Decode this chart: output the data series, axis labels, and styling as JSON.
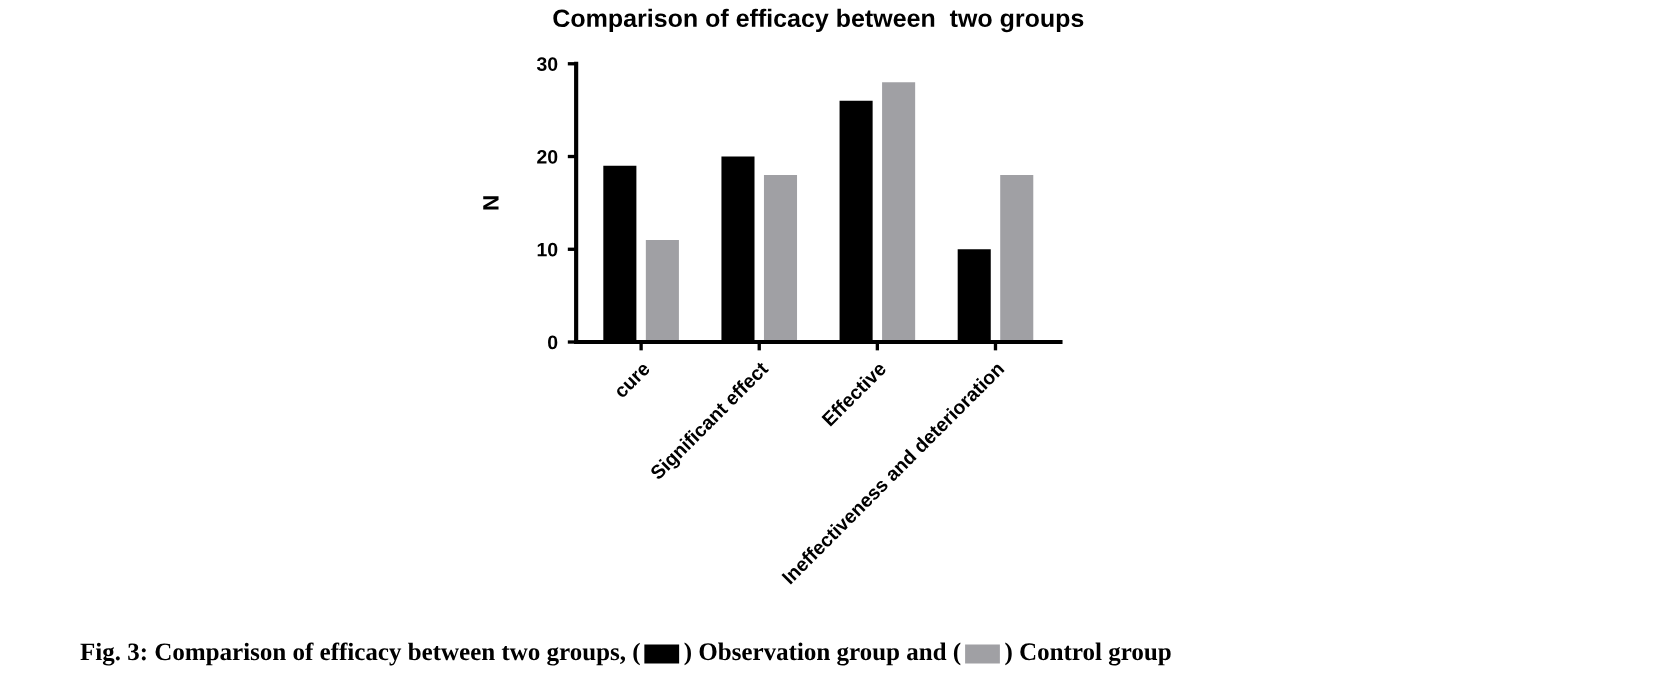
{
  "chart_data": {
    "type": "bar",
    "title": "Comparison of efficacy between  two groups",
    "ylabel": "N",
    "categories": [
      "cure",
      "Significant effect",
      "Effective",
      "Ineffectiveness and deterioration"
    ],
    "series": [
      {
        "color": "#000000",
        "values": [
          19,
          20,
          26,
          10
        ]
      },
      {
        "color": "#a0a0a4",
        "values": [
          11,
          18,
          28,
          18
        ]
      }
    ],
    "ylim": [
      0,
      30
    ],
    "yticks": [
      0,
      10,
      20,
      30
    ],
    "grid": false,
    "annotations": [
      "Fig. 3: Comparison of efficacy between two groups, (",
      ") Observation group and (",
      ") Control group"
    ]
  }
}
